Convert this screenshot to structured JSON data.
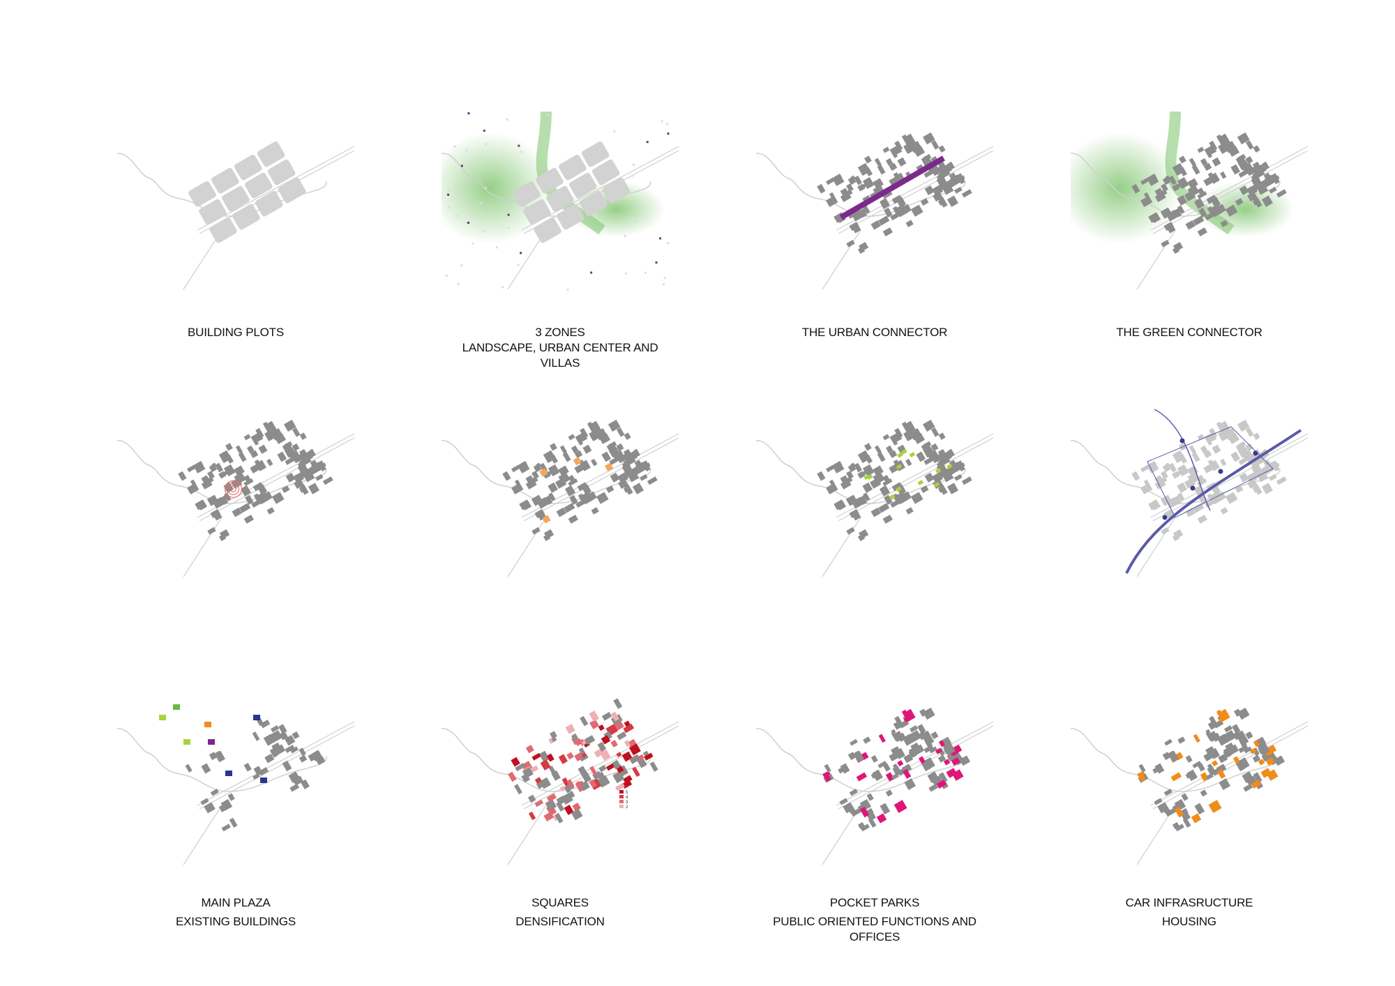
{
  "diagrams": [
    {
      "key": "plots",
      "label": "BUILDING PLOTS"
    },
    {
      "key": "zones",
      "label": "3 ZONES\nLANDSCAPE, URBAN CENTER AND\nVILLAS"
    },
    {
      "key": "urban",
      "label": "THE URBAN CONNECTOR"
    },
    {
      "key": "green",
      "label": "THE GREEN CONNECTOR"
    },
    {
      "key": "plaza",
      "label": "MAIN PLAZA"
    },
    {
      "key": "squares",
      "label": "SQUARES"
    },
    {
      "key": "parks",
      "label": "POCKET PARKS"
    },
    {
      "key": "car",
      "label": "CAR INFRASRUCTURE"
    },
    {
      "key": "existing",
      "label": "EXISTING BUILDINGS"
    },
    {
      "key": "densification",
      "label": "DENSIFICATION",
      "legend": [
        "5",
        "4",
        "3",
        "2"
      ]
    },
    {
      "key": "public",
      "label": "PUBLIC ORIENTED FUNCTIONS AND\nOFFICES"
    },
    {
      "key": "housing",
      "label": "HOUSING"
    }
  ],
  "colors": {
    "building": "#8c8c8c",
    "plot": "#d2d2d2",
    "line": "#cfcfcf",
    "green": "#7cc36a",
    "purple": "#7b2a8c",
    "plaza": "#e8706a",
    "square": "#f5a65b",
    "park": "#a6d33c",
    "car": "#5a5aa8",
    "public": "#e0157a",
    "housing": "#f08c1a",
    "dens": [
      "#c0101e",
      "#d63a44",
      "#e06a72",
      "#eeb0b4"
    ]
  }
}
